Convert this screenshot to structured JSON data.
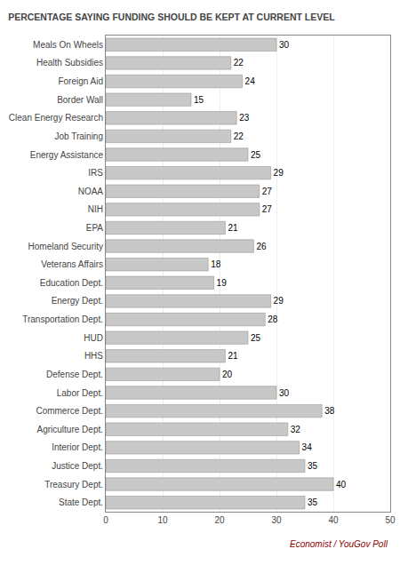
{
  "chart_data": {
    "type": "bar",
    "orientation": "horizontal",
    "title": "PERCENTAGE SAYING FUNDING SHOULD BE KEPT AT CURRENT LEVEL",
    "categories": [
      "Meals On Wheels",
      "Health Subsidies",
      "Foreign Aid",
      "Border Wall",
      "Clean Energy Research",
      "Job Training",
      "Energy Assistance",
      "IRS",
      "NOAA",
      "NIH",
      "EPA",
      "Homeland Security",
      "Veterans Affairs",
      "Education Dept.",
      "Energy Dept.",
      "Transportation Dept.",
      "HUD",
      "HHS",
      "Defense Dept.",
      "Labor Dept.",
      "Commerce Dept.",
      "Agriculture Dept.",
      "Interior Dept.",
      "Justice Dept.",
      "Treasury Dept.",
      "State Dept."
    ],
    "values": [
      30,
      22,
      24,
      15,
      23,
      22,
      25,
      29,
      27,
      27,
      21,
      26,
      18,
      19,
      29,
      28,
      25,
      21,
      20,
      30,
      38,
      32,
      34,
      35,
      40,
      35
    ],
    "color": "#c8c8c8",
    "xlim": [
      0,
      50
    ],
    "xticks": [
      0,
      10,
      20,
      30,
      40,
      50
    ],
    "grid": true,
    "data_labels": true,
    "annotations": [
      "Economist / YouGov Poll"
    ]
  }
}
